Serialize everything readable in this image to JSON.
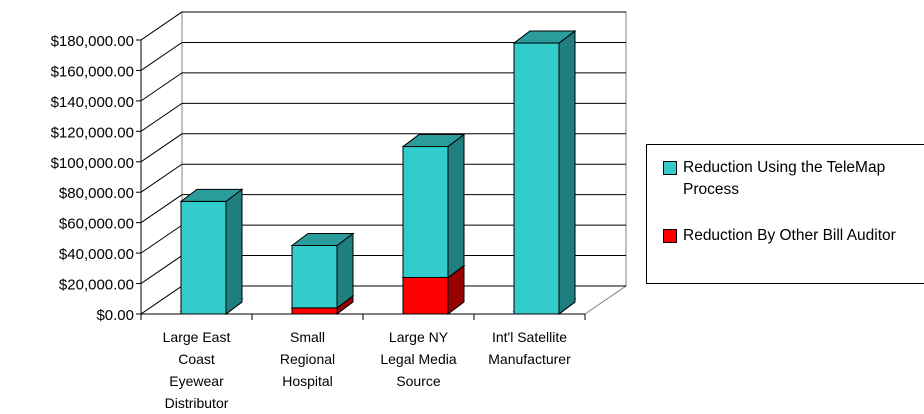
{
  "chart_data": {
    "type": "bar",
    "stacked": true,
    "three_d": true,
    "categories": [
      [
        "Large East",
        "Coast",
        "Eyewear",
        "Distributor"
      ],
      [
        "Small",
        "Regional",
        "Hospital"
      ],
      [
        "Large NY",
        "Legal Media",
        "Source"
      ],
      [
        "Int'l Satellite",
        "Manufacturer"
      ]
    ],
    "series": [
      {
        "name": "Reduction By Other Bill Auditor",
        "color": "#ff0000",
        "side_color": "#990000",
        "top_color": "#cc0000",
        "values": [
          0,
          4000,
          24000,
          0
        ]
      },
      {
        "name": "Reduction Using the TeleMap Process",
        "color": "#33cccc",
        "side_color": "#1f7f7f",
        "top_color": "#2a9c9c",
        "values": [
          74000,
          41000,
          86000,
          178000
        ]
      }
    ],
    "y_ticks": [
      "$0.00",
      "$20,000.00",
      "$40,000.00",
      "$60,000.00",
      "$80,000.00",
      "$100,000.00",
      "$120,000.00",
      "$140,000.00",
      "$160,000.00",
      "$180,000.00"
    ],
    "ylim": [
      0,
      180000
    ],
    "grid": true,
    "legend_position": "right"
  },
  "legend": {
    "items": [
      {
        "label": "Reduction Using the TeleMap Process",
        "color": "#33cccc"
      },
      {
        "label": "Reduction By Other Bill Auditor",
        "color": "#ff0000"
      }
    ]
  }
}
